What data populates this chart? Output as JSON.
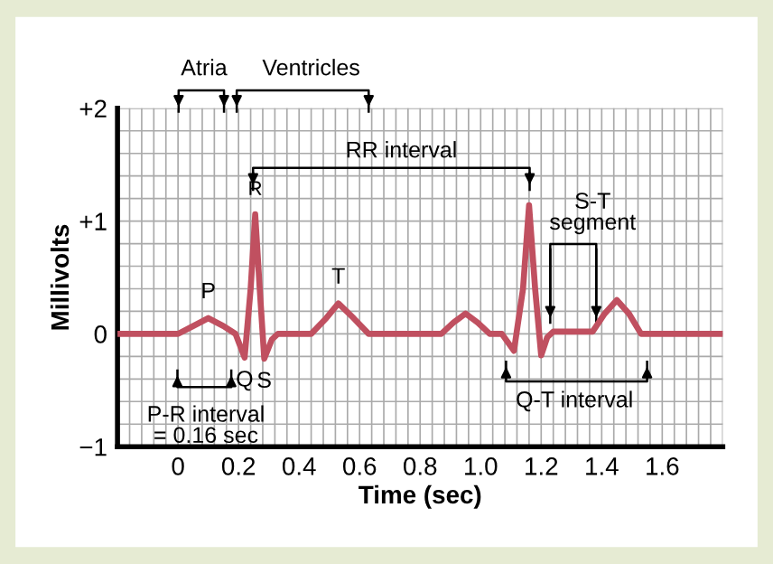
{
  "chart_data": {
    "type": "line",
    "xlabel": "Time (sec)",
    "ylabel": "Millivolts",
    "x": [
      -0.2,
      0,
      0.05,
      0.1,
      0.15,
      0.19,
      0.22,
      0.24,
      0.255,
      0.27,
      0.285,
      0.31,
      0.33,
      0.44,
      0.49,
      0.53,
      0.58,
      0.63,
      0.87,
      0.91,
      0.95,
      0.99,
      1.03,
      1.07,
      1.11,
      1.14,
      1.16,
      1.18,
      1.2,
      1.22,
      1.24,
      1.37,
      1.41,
      1.45,
      1.49,
      1.53,
      1.8
    ],
    "series": [
      {
        "color": "#c05060",
        "values": [
          0,
          0,
          0.07,
          0.14,
          0.07,
          0,
          -0.21,
          0.4,
          1.06,
          0.4,
          -0.22,
          -0.05,
          0,
          0,
          0.14,
          0.27,
          0.14,
          0,
          0,
          0.1,
          0.18,
          0.1,
          0,
          0,
          -0.15,
          0.4,
          1.14,
          0.4,
          -0.19,
          -0.03,
          0.02,
          0.02,
          0.18,
          0.3,
          0.18,
          0,
          0
        ]
      }
    ],
    "xlim": [
      -0.2,
      1.8
    ],
    "ylim": [
      -1,
      2
    ],
    "xticks": [
      {
        "value": -0.2,
        "label": null
      },
      {
        "value": -0.16,
        "label": null
      },
      {
        "value": -0.12,
        "label": null
      },
      {
        "value": -0.08,
        "label": null
      },
      {
        "value": -0.04,
        "label": null
      },
      0,
      {
        "value": 0.04,
        "label": null
      },
      {
        "value": 0.08,
        "label": null
      },
      {
        "value": 0.12,
        "label": null
      },
      {
        "value": 0.16,
        "label": null
      },
      0.2,
      {
        "value": 0.24,
        "label": null
      },
      {
        "value": 0.28,
        "label": null
      },
      {
        "value": 0.32,
        "label": null
      },
      {
        "value": 0.36,
        "label": null
      },
      0.4,
      {
        "value": 0.44,
        "label": null
      },
      {
        "value": 0.48,
        "label": null
      },
      {
        "value": 0.52,
        "label": null
      },
      {
        "value": 0.56,
        "label": null
      },
      0.6,
      {
        "value": 0.64,
        "label": null
      },
      {
        "value": 0.68,
        "label": null
      },
      {
        "value": 0.72,
        "label": null
      },
      {
        "value": 0.76,
        "label": null
      },
      0.8,
      {
        "value": 0.84,
        "label": null
      },
      {
        "value": 0.88,
        "label": null
      },
      {
        "value": 0.92,
        "label": null
      },
      {
        "value": 0.96,
        "label": null
      },
      {
        "value": 1.0,
        "label": "1.0"
      },
      {
        "value": 1.04,
        "label": null
      },
      {
        "value": 1.08,
        "label": null
      },
      {
        "value": 1.12,
        "label": null
      },
      {
        "value": 1.16,
        "label": null
      },
      1.2,
      {
        "value": 1.24,
        "label": null
      },
      {
        "value": 1.28,
        "label": null
      },
      {
        "value": 1.32,
        "label": null
      },
      {
        "value": 1.36,
        "label": null
      },
      1.4,
      {
        "value": 1.44,
        "label": null
      },
      {
        "value": 1.48,
        "label": null
      },
      {
        "value": 1.52,
        "label": null
      },
      {
        "value": 1.56,
        "label": null
      },
      1.6,
      {
        "value": 1.64,
        "label": null
      },
      {
        "value": 1.68,
        "label": null
      },
      {
        "value": 1.72,
        "label": null
      },
      {
        "value": 1.76,
        "label": null
      },
      {
        "value": 1.8,
        "label": null
      }
    ],
    "yticks": [
      {
        "value": -1,
        "label": "−1"
      },
      {
        "value": -0.8,
        "label": null
      },
      {
        "value": -0.6,
        "label": null
      },
      {
        "value": -0.4,
        "label": null
      },
      {
        "value": -0.2,
        "label": null
      },
      0,
      {
        "value": 0.2,
        "label": null
      },
      {
        "value": 0.4,
        "label": null
      },
      {
        "value": 0.6,
        "label": null
      },
      {
        "value": 0.8,
        "label": null
      },
      {
        "value": 1,
        "label": "+1"
      },
      {
        "value": 1.2,
        "label": null
      },
      {
        "value": 1.4,
        "label": null
      },
      {
        "value": 1.6,
        "label": null
      },
      {
        "value": 1.8,
        "label": null
      },
      {
        "value": 2,
        "label": "+2"
      }
    ],
    "grid": true,
    "legend": false,
    "annotations": [
      {
        "text": "P",
        "x": 0.1,
        "y": 0.14
      },
      {
        "text": "R",
        "x": 0.255,
        "y": 1.06
      },
      {
        "text": "Q",
        "x": 0.22,
        "y": -0.21
      },
      {
        "text": "S",
        "x": 0.285,
        "y": -0.22
      },
      {
        "text": "T",
        "x": 0.53,
        "y": 0.27
      },
      "Atria",
      "Ventricles",
      "RR interval",
      {
        "text": "S-T\nsegment",
        "x": 1.23,
        "y": 0.1
      },
      "P-R interval\n= 0.16 sec",
      "Q-T interval"
    ]
  }
}
